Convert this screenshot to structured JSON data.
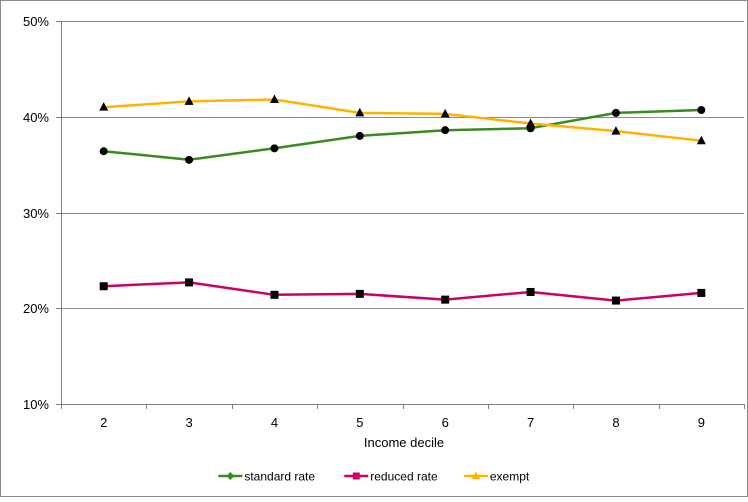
{
  "chart_data": {
    "type": "line",
    "title": "",
    "xlabel": "Income decile",
    "ylabel": "",
    "categories": [
      "2",
      "3",
      "4",
      "5",
      "6",
      "7",
      "8",
      "9"
    ],
    "ylim": [
      0.1,
      0.5
    ],
    "yticks": [
      0.1,
      0.2,
      0.3,
      0.4,
      0.5
    ],
    "ytick_labels": [
      "10%",
      "20%",
      "30%",
      "40%",
      "50%"
    ],
    "grid": {
      "horizontal": true,
      "vertical": false
    },
    "legend_position": "bottom",
    "series": [
      {
        "name": "standard rate",
        "color": "#3a8a1f",
        "marker": "diamond",
        "values": [
          0.364,
          0.355,
          0.367,
          0.38,
          0.386,
          0.388,
          0.404,
          0.407
        ]
      },
      {
        "name": "reduced rate",
        "color": "#cc0066",
        "marker": "square",
        "values": [
          0.223,
          0.227,
          0.214,
          0.215,
          0.209,
          0.217,
          0.208,
          0.216
        ]
      },
      {
        "name": "exempt",
        "color": "#ffb300",
        "marker": "triangle",
        "values": [
          0.41,
          0.416,
          0.418,
          0.404,
          0.403,
          0.393,
          0.385,
          0.375
        ]
      }
    ]
  }
}
